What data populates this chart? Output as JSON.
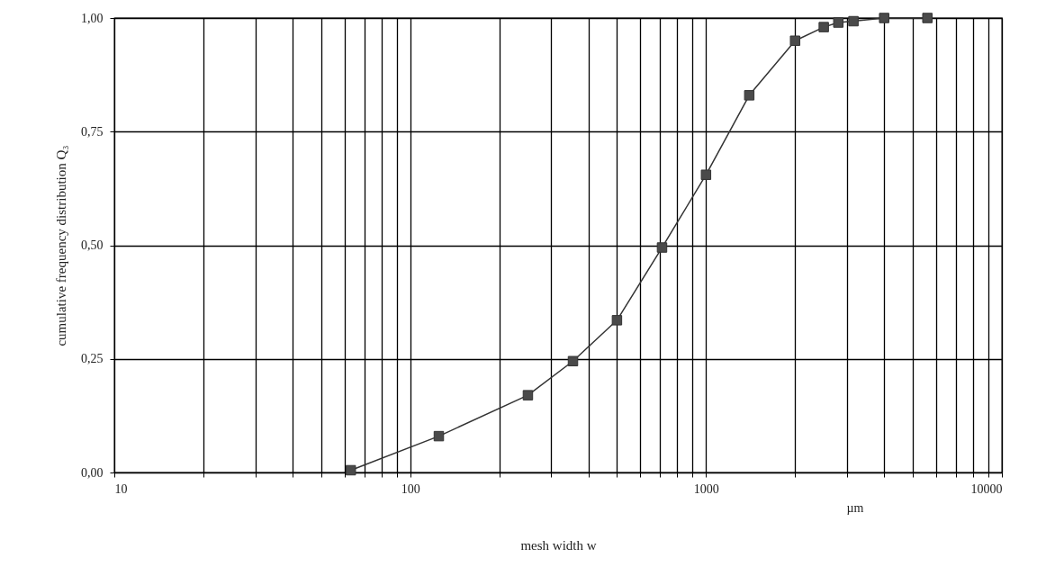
{
  "chart_data": {
    "type": "line",
    "xlabel": "mesh width w",
    "ylabel": "cumulative frequency distribution Q₃",
    "annotations": [
      "µm"
    ],
    "x": [
      63,
      125,
      250,
      355,
      500,
      710,
      1000,
      1400,
      2000,
      2500,
      2800,
      3150,
      4000,
      5600
    ],
    "series": [
      {
        "color": "#333333",
        "values": [
          0.005,
          0.08,
          0.17,
          0.245,
          0.335,
          0.495,
          0.655,
          0.83,
          0.95,
          0.98,
          0.99,
          0.993,
          1.0,
          1.0
        ]
      }
    ],
    "log": "x",
    "marker": "square",
    "line_style": "solid",
    "grid": true,
    "xlim": [
      10,
      10000
    ],
    "ylim": [
      0,
      1
    ],
    "xticks": [
      10,
      {
        "value": 20,
        "label": null
      },
      {
        "value": 30,
        "label": null
      },
      {
        "value": 40,
        "label": null
      },
      {
        "value": 50,
        "label": null
      },
      {
        "value": 60,
        "label": null
      },
      {
        "value": 70,
        "label": null
      },
      {
        "value": 80,
        "label": null
      },
      {
        "value": 90,
        "label": null
      },
      100,
      {
        "value": 200,
        "label": null
      },
      {
        "value": 300,
        "label": null
      },
      {
        "value": 400,
        "label": null
      },
      {
        "value": 500,
        "label": null
      },
      {
        "value": 600,
        "label": null
      },
      {
        "value": 700,
        "label": null
      },
      {
        "value": 800,
        "label": null
      },
      {
        "value": 900,
        "label": null
      },
      1000,
      {
        "value": 2000,
        "label": null
      },
      {
        "value": 3000,
        "label": null
      },
      {
        "value": 4000,
        "label": null
      },
      {
        "value": 5000,
        "label": null
      },
      {
        "value": 6000,
        "label": null
      },
      {
        "value": 7000,
        "label": null
      },
      {
        "value": 8000,
        "label": null
      },
      {
        "value": 9000,
        "label": null
      },
      10000
    ],
    "yticks": [
      {
        "value": 0,
        "label": "0,00"
      },
      {
        "value": 0.25,
        "label": "0,25"
      },
      {
        "value": 0.5,
        "label": "0,50"
      },
      {
        "value": 0.75,
        "label": "0,75"
      },
      {
        "value": 1,
        "label": "1,00"
      }
    ]
  }
}
